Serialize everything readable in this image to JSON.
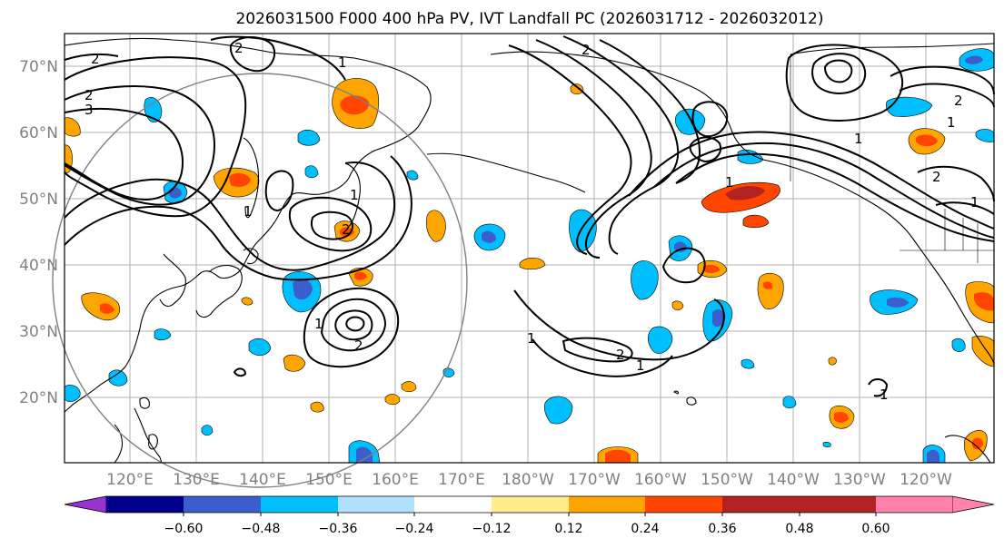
{
  "title": "2026031500 F000 400 hPa PV, IVT Landfall PC (2026031712 - 2026032012)",
  "map": {
    "lat_labels": [
      "70°N",
      "60°N",
      "50°N",
      "40°N",
      "30°N",
      "20°N"
    ],
    "lon_labels": [
      "120°E",
      "130°E",
      "140°E",
      "150°E",
      "160°E",
      "170°E",
      "180°W",
      "170°W",
      "160°W",
      "150°W",
      "140°W",
      "130°W",
      "120°W"
    ],
    "contour_labels": [
      "2",
      "2",
      "3",
      "1",
      "1",
      "2",
      "1",
      "2",
      "1",
      "2",
      "1",
      "2",
      "1",
      "1",
      "1",
      "1",
      "2",
      "1",
      "2",
      "2",
      "1"
    ]
  },
  "colorbar": {
    "ticks": [
      "−0.60",
      "−0.48",
      "−0.36",
      "−0.24",
      "−0.12",
      "0.12",
      "0.24",
      "0.36",
      "0.48",
      "0.60"
    ],
    "colors": [
      "#9932cc",
      "#00008b",
      "#3a5fcd",
      "#00bfff",
      "#b0e2ff",
      "#ffffff",
      "#ffec8b",
      "#ffa500",
      "#ff4500",
      "#b22222",
      "#ff82ab"
    ]
  },
  "colors": {
    "grid": "#b0b0b0",
    "frame": "#000000",
    "circle": "#808080"
  }
}
